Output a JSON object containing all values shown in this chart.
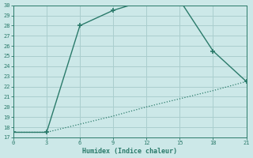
{
  "xlabel": "Humidex (Indice chaleur)",
  "line1_x": [
    0,
    3,
    6,
    9,
    12,
    15,
    18,
    21
  ],
  "line1_y": [
    17.5,
    17.5,
    28.0,
    29.5,
    30.5,
    30.5,
    25.5,
    22.5
  ],
  "line2_x": [
    0,
    3,
    6,
    9,
    12,
    15,
    18,
    21
  ],
  "line2_y": [
    17.5,
    17.5,
    18.3,
    19.1,
    20.0,
    20.8,
    21.6,
    22.5
  ],
  "line_color": "#2a7a6a",
  "bg_color": "#cce8e8",
  "grid_color": "#aacece",
  "xlim": [
    0,
    21
  ],
  "ylim": [
    17,
    30
  ],
  "xticks": [
    0,
    3,
    6,
    9,
    12,
    15,
    18,
    21
  ],
  "yticks": [
    17,
    18,
    19,
    20,
    21,
    22,
    23,
    24,
    25,
    26,
    27,
    28,
    29,
    30
  ]
}
